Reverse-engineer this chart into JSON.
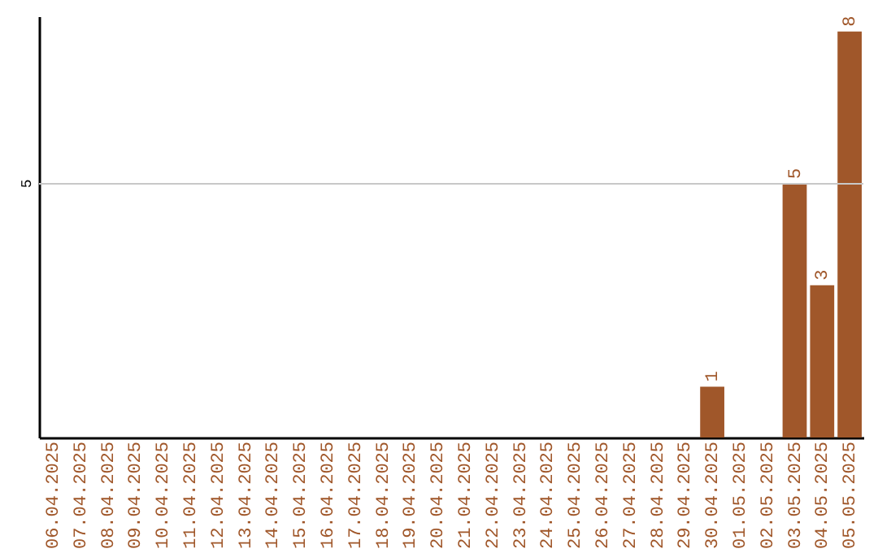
{
  "chart_data": {
    "type": "bar",
    "categories": [
      "06.04.2025",
      "07.04.2025",
      "08.04.2025",
      "09.04.2025",
      "10.04.2025",
      "11.04.2025",
      "12.04.2025",
      "13.04.2025",
      "14.04.2025",
      "15.04.2025",
      "16.04.2025",
      "17.04.2025",
      "18.04.2025",
      "19.04.2025",
      "20.04.2025",
      "21.04.2025",
      "22.04.2025",
      "23.04.2025",
      "24.04.2025",
      "25.04.2025",
      "26.04.2025",
      "27.04.2025",
      "28.04.2025",
      "29.04.2025",
      "30.04.2025",
      "01.05.2025",
      "02.05.2025",
      "03.05.2025",
      "04.05.2025",
      "05.05.2025"
    ],
    "values": [
      null,
      null,
      null,
      null,
      null,
      null,
      null,
      null,
      null,
      null,
      null,
      null,
      null,
      null,
      null,
      null,
      null,
      null,
      null,
      null,
      null,
      null,
      null,
      null,
      1,
      null,
      null,
      5,
      3,
      8
    ],
    "data_labels": true,
    "color": "#a0572a",
    "ylim": [
      0,
      8.3
    ],
    "ref_lines": [
      {
        "axis": "y",
        "value": 5,
        "label": "5",
        "color": "#c8c8c8"
      }
    ]
  }
}
